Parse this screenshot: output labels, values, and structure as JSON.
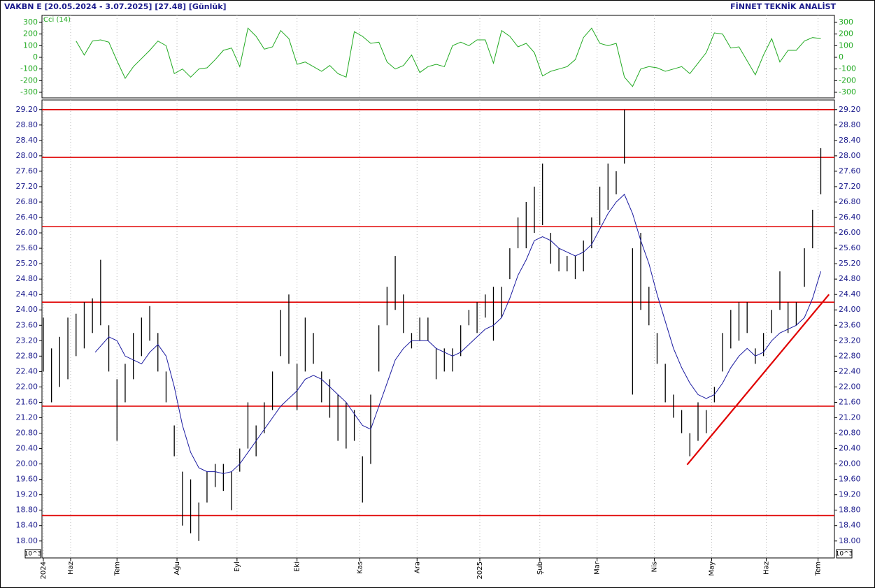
{
  "chart_data": {
    "type": "ohlc",
    "title": "VAKBN E  [20.05.2024 - 3.07.2025]  [27.48]  [Günlük]",
    "source": "FİNNET TEKNİK ANALİST",
    "unit_label": "10^3",
    "color": "#000000",
    "x": [
      0,
      3,
      6,
      9,
      12,
      15,
      18,
      21,
      24,
      27,
      30,
      33,
      36,
      39,
      42,
      45,
      48,
      51,
      54,
      57,
      60,
      63,
      66,
      69,
      72,
      75,
      78,
      81,
      84,
      87,
      90,
      93,
      96,
      99,
      102,
      105,
      108,
      111,
      114,
      117,
      120,
      123,
      126,
      129,
      132,
      135,
      138,
      141,
      144,
      147,
      150,
      153,
      156,
      159,
      162,
      165,
      168,
      171,
      174,
      177,
      180,
      183,
      186,
      189,
      192,
      195,
      198,
      201,
      204,
      207,
      210,
      213,
      216,
      219,
      222,
      225,
      228,
      231,
      234,
      237,
      240,
      243,
      246,
      249,
      252,
      255,
      258,
      261,
      264,
      267,
      270,
      273,
      276,
      279,
      282,
      285
    ],
    "high": [
      23.8,
      23.0,
      23.3,
      23.8,
      23.9,
      24.2,
      24.3,
      25.3,
      23.6,
      22.2,
      22.6,
      23.4,
      23.8,
      24.1,
      23.4,
      22.4,
      21.0,
      19.8,
      19.6,
      19.0,
      19.8,
      20.0,
      20.0,
      19.8,
      20.4,
      21.6,
      21.0,
      21.6,
      22.4,
      24.0,
      24.4,
      22.6,
      23.8,
      23.4,
      22.4,
      22.2,
      21.8,
      21.6,
      21.4,
      20.2,
      21.8,
      23.6,
      24.6,
      25.4,
      24.4,
      23.4,
      23.8,
      23.8,
      23.0,
      23.0,
      23.0,
      23.6,
      24.0,
      24.2,
      24.4,
      24.6,
      24.6,
      25.6,
      26.4,
      26.8,
      27.2,
      27.8,
      26.0,
      25.6,
      25.4,
      25.4,
      25.8,
      26.4,
      27.2,
      27.8,
      27.6,
      29.2,
      25.6,
      26.0,
      24.6,
      23.4,
      22.6,
      21.8,
      21.4,
      20.8,
      21.6,
      21.4,
      22.0,
      23.4,
      24.0,
      24.2,
      24.2,
      23.0,
      23.4,
      24.0,
      25.0,
      24.2,
      24.2,
      25.6,
      26.6,
      28.2
    ],
    "low": [
      22.4,
      21.6,
      22.0,
      22.2,
      22.8,
      23.0,
      23.4,
      23.6,
      22.4,
      20.6,
      21.6,
      22.2,
      22.8,
      23.2,
      22.4,
      21.6,
      20.2,
      18.4,
      18.2,
      18.0,
      19.0,
      19.4,
      19.3,
      18.8,
      19.8,
      20.4,
      20.2,
      20.8,
      21.4,
      22.8,
      22.6,
      21.4,
      22.4,
      22.6,
      21.6,
      21.2,
      20.6,
      20.4,
      20.6,
      19.0,
      20.0,
      22.4,
      23.6,
      24.0,
      23.4,
      23.0,
      23.2,
      23.2,
      22.2,
      22.4,
      22.4,
      22.8,
      23.6,
      23.4,
      23.8,
      23.2,
      23.8,
      24.8,
      25.6,
      25.6,
      26.0,
      26.2,
      25.2,
      25.0,
      25.0,
      24.8,
      25.0,
      25.6,
      26.2,
      26.6,
      27.0,
      27.8,
      21.8,
      24.0,
      23.6,
      22.6,
      21.6,
      21.2,
      20.8,
      20.2,
      20.6,
      20.8,
      21.6,
      22.4,
      23.0,
      23.2,
      23.4,
      22.6,
      22.8,
      23.4,
      24.0,
      23.4,
      23.6,
      24.6,
      25.6,
      27.0
    ],
    "xlim": [
      -0.5,
      290
    ],
    "xticks": [
      {
        "value": 0,
        "label": "2024"
      },
      {
        "value": 10,
        "label": "Haz"
      },
      {
        "value": 27,
        "label": "Tem"
      },
      {
        "value": 49,
        "label": "Ağu"
      },
      {
        "value": 71,
        "label": "Eyl"
      },
      {
        "value": 93,
        "label": "Eki"
      },
      {
        "value": 116,
        "label": "Kas"
      },
      {
        "value": 137,
        "label": "Ara"
      },
      {
        "value": 160,
        "label": "2025"
      },
      {
        "value": 182,
        "label": "Şub"
      },
      {
        "value": 203,
        "label": "Mar"
      },
      {
        "value": 224,
        "label": "Nis"
      },
      {
        "value": 245,
        "label": "May"
      },
      {
        "value": 265,
        "label": "Haz"
      },
      {
        "value": 284,
        "label": "Tem"
      }
    ],
    "ylim": [
      17.56,
      29.45
    ],
    "yticks": [
      {
        "value": 18.0,
        "label": "18.00"
      },
      {
        "value": 18.4,
        "label": "18.40"
      },
      {
        "value": 18.8,
        "label": "18.80"
      },
      {
        "value": 19.2,
        "label": "19.20"
      },
      {
        "value": 19.6,
        "label": "19.60"
      },
      {
        "value": 20.0,
        "label": "20.00"
      },
      {
        "value": 20.4,
        "label": "20.40"
      },
      {
        "value": 20.8,
        "label": "20.80"
      },
      {
        "value": 21.2,
        "label": "21.20"
      },
      {
        "value": 21.6,
        "label": "21.60"
      },
      {
        "value": 22.0,
        "label": "22.00"
      },
      {
        "value": 22.4,
        "label": "22.40"
      },
      {
        "value": 22.8,
        "label": "22.80"
      },
      {
        "value": 23.2,
        "label": "23.20"
      },
      {
        "value": 23.6,
        "label": "23.60"
      },
      {
        "value": 24.0,
        "label": "24.00"
      },
      {
        "value": 24.4,
        "label": "24.40"
      },
      {
        "value": 24.8,
        "label": "24.80"
      },
      {
        "value": 25.2,
        "label": "25.20"
      },
      {
        "value": 25.6,
        "label": "25.60"
      },
      {
        "value": 26.0,
        "label": "26.00"
      },
      {
        "value": 26.4,
        "label": "26.40"
      },
      {
        "value": 26.8,
        "label": "26.80"
      },
      {
        "value": 27.2,
        "label": "27.20"
      },
      {
        "value": 27.6,
        "label": "27.60"
      },
      {
        "value": 28.0,
        "label": "28.00"
      },
      {
        "value": 28.4,
        "label": "28.40"
      },
      {
        "value": 28.8,
        "label": "28.80"
      },
      {
        "value": 29.2,
        "label": "29.20"
      }
    ],
    "grid": true,
    "moving_average": {
      "color": "#1a1aa0",
      "x": [
        19,
        24,
        27,
        30,
        33,
        36,
        39,
        42,
        45,
        48,
        51,
        54,
        57,
        60,
        63,
        66,
        69,
        72,
        75,
        78,
        81,
        84,
        87,
        90,
        93,
        96,
        99,
        102,
        105,
        108,
        111,
        114,
        117,
        120,
        123,
        126,
        129,
        132,
        135,
        138,
        141,
        144,
        147,
        150,
        153,
        156,
        159,
        162,
        165,
        168,
        171,
        174,
        177,
        180,
        183,
        186,
        189,
        192,
        195,
        198,
        201,
        204,
        207,
        210,
        213,
        216,
        219,
        222,
        225,
        228,
        231,
        234,
        237,
        240,
        243,
        246,
        249,
        252,
        255,
        258,
        261,
        264,
        267,
        270,
        273,
        276,
        279,
        282,
        285
      ],
      "values": [
        22.9,
        23.3,
        23.2,
        22.8,
        22.7,
        22.6,
        22.9,
        23.1,
        22.8,
        22.0,
        21.0,
        20.3,
        19.9,
        19.8,
        19.8,
        19.75,
        19.8,
        20.0,
        20.3,
        20.6,
        20.9,
        21.2,
        21.5,
        21.7,
        21.9,
        22.2,
        22.3,
        22.2,
        22.0,
        21.8,
        21.6,
        21.3,
        21.0,
        20.9,
        21.5,
        22.1,
        22.7,
        23.0,
        23.2,
        23.2,
        23.2,
        23.0,
        22.9,
        22.8,
        22.9,
        23.1,
        23.3,
        23.5,
        23.6,
        23.8,
        24.3,
        24.9,
        25.3,
        25.8,
        25.9,
        25.8,
        25.6,
        25.5,
        25.4,
        25.5,
        25.7,
        26.1,
        26.5,
        26.8,
        27.0,
        26.5,
        25.8,
        25.2,
        24.4,
        23.7,
        23.0,
        22.5,
        22.1,
        21.8,
        21.7,
        21.8,
        22.1,
        22.5,
        22.8,
        23.0,
        22.8,
        22.9,
        23.2,
        23.4,
        23.5,
        23.6,
        23.8,
        24.3,
        25.0
      ]
    },
    "levels": {
      "color": "#e00000",
      "values": [
        29.2,
        27.96,
        26.16,
        24.2,
        21.5,
        18.66
      ]
    },
    "trendline": {
      "color": "#e00000",
      "x": [
        236,
        288
      ],
      "values": [
        19.98,
        24.4
      ]
    },
    "indicator": {
      "name": "Cci (14)",
      "color": "#22aa22",
      "ylim": [
        -348,
        360
      ],
      "yticks": [
        -300,
        -200,
        -100,
        0,
        100,
        200,
        300
      ],
      "x": [
        12,
        15,
        18,
        21,
        24,
        27,
        30,
        33,
        36,
        39,
        42,
        45,
        48,
        51,
        54,
        57,
        60,
        63,
        66,
        69,
        72,
        75,
        78,
        81,
        84,
        87,
        90,
        93,
        96,
        99,
        102,
        105,
        108,
        111,
        114,
        117,
        120,
        123,
        126,
        129,
        132,
        135,
        138,
        141,
        144,
        147,
        150,
        153,
        156,
        159,
        162,
        165,
        168,
        171,
        174,
        177,
        180,
        183,
        186,
        189,
        192,
        195,
        198,
        201,
        204,
        207,
        210,
        213,
        216,
        219,
        222,
        225,
        228,
        231,
        234,
        237,
        240,
        243,
        246,
        249,
        252,
        255,
        258,
        261,
        264,
        267,
        270,
        273,
        276,
        279,
        282,
        285
      ],
      "values": [
        140,
        20,
        140,
        150,
        130,
        -30,
        -180,
        -80,
        -10,
        60,
        140,
        100,
        -140,
        -100,
        -170,
        -100,
        -90,
        -20,
        60,
        80,
        -80,
        250,
        180,
        70,
        90,
        230,
        160,
        -60,
        -40,
        -80,
        -120,
        -70,
        -140,
        -170,
        220,
        180,
        120,
        130,
        -40,
        -100,
        -70,
        20,
        -130,
        -80,
        -60,
        -80,
        100,
        130,
        100,
        150,
        150,
        -50,
        230,
        180,
        90,
        120,
        40,
        -160,
        -120,
        -100,
        -80,
        -20,
        170,
        250,
        120,
        100,
        120,
        -170,
        -250,
        -100,
        -80,
        -90,
        -120,
        -100,
        -80,
        -140,
        -50,
        40,
        210,
        200,
        80,
        90,
        -30,
        -150,
        20,
        160,
        -40,
        60,
        60,
        140,
        170,
        160
      ]
    }
  }
}
